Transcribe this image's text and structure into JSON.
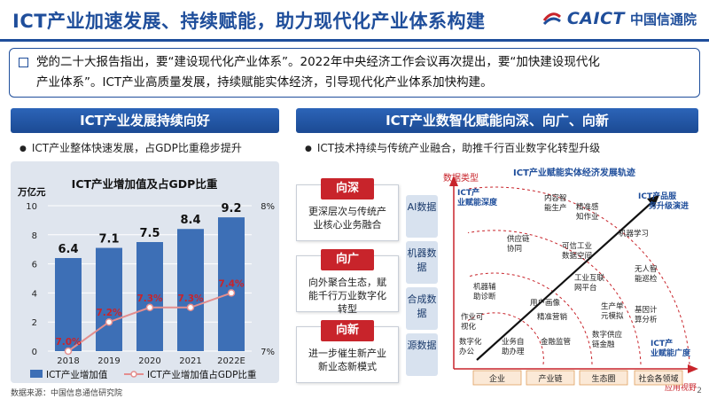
{
  "header": {
    "title": "ICT产业加速发展、持续赋能，助力现代化产业体系构建",
    "logo_en": "CAICT",
    "logo_cn": "中国信通院"
  },
  "intro": {
    "line1": "党的二十大报告指出，要“建设现代化产业体系”。2022年中央经济工作会议再次提出，要“加快建设现代化",
    "line2": "产业体系”。ICT产业高质量发展，持续赋能实体经济，引导现代化产业体系加快构建。"
  },
  "left": {
    "section_title": "ICT产业发展持续向好",
    "bullet": "ICT产业整体快速发展，占GDP比重稳步提升",
    "source": "数据来源：中国信息通信研究院"
  },
  "chart_data": {
    "type": "bar",
    "title": "ICT产业增加值及占GDP比重",
    "y_unit": "万亿元",
    "categories": [
      "2018",
      "2019",
      "2020",
      "2021",
      "2022E"
    ],
    "ylim": [
      0,
      10
    ],
    "yticks": [
      "0",
      "2",
      "4",
      "6",
      "8",
      "10"
    ],
    "y2lim": [
      7,
      8
    ],
    "y2ticks": [
      "7%",
      "8%"
    ],
    "series": [
      {
        "name": "ICT产业增加值",
        "type": "bar",
        "values": [
          6.4,
          7.1,
          7.5,
          8.4,
          9.2
        ],
        "labels": [
          "6.4",
          "7.1",
          "7.5",
          "8.4",
          "9.2"
        ],
        "color": "#3d6fb6"
      },
      {
        "name": "ICT产业增加值占GDP比重",
        "type": "line",
        "values": [
          7.0,
          7.2,
          7.3,
          7.3,
          7.4
        ],
        "labels": [
          "7.0%",
          "7.2%",
          "7.3%",
          "7.3%",
          "7.4%"
        ],
        "color": "#e48e8e",
        "label_color": "#c8242b"
      }
    ],
    "grid": true,
    "legend": "bottom"
  },
  "right": {
    "section_title": "ICT产业数智化赋能向深、向广、向新",
    "bullet": "ICT技术持续与传统产业融合，助推千行百业数字化转型升级",
    "boxes": [
      {
        "tag": "向深",
        "text": "更深层次与传统产业核心业务融合"
      },
      {
        "tag": "向广",
        "text": "向外聚合生态，赋能千行万业数字化转型"
      },
      {
        "tag": "向新",
        "text": "进一步催生新产业新业态新模式"
      }
    ],
    "data_tags": [
      "AI数据",
      "机器数据",
      "合成数据",
      "源数据"
    ],
    "diagram": {
      "title": "ICT产业赋能实体经济发展轨迹",
      "y_axis": "数据类型",
      "x_axis": "应用视野",
      "depth_label": "ICT产业赋能深度",
      "breadth_label": "ICT产业赋能广度",
      "service_label": "ICT产品服务升级演进",
      "x_categories": [
        "企业",
        "产业链",
        "生态圈",
        "社会各领域"
      ],
      "items": [
        "内容智能生产",
        "精准感知作业",
        "机器学习",
        "供应链协同",
        "可信工业数据空间",
        "工业互联网平台",
        "无人智能巡检",
        "机器辅助诊断",
        "用户画像",
        "精准营销",
        "生产单元模拟",
        "作业可视化",
        "数字化办公",
        "业务自助办理",
        "金融监管",
        "数字供应链金融",
        "基因计算分析"
      ]
    },
    "page_no": "2"
  }
}
